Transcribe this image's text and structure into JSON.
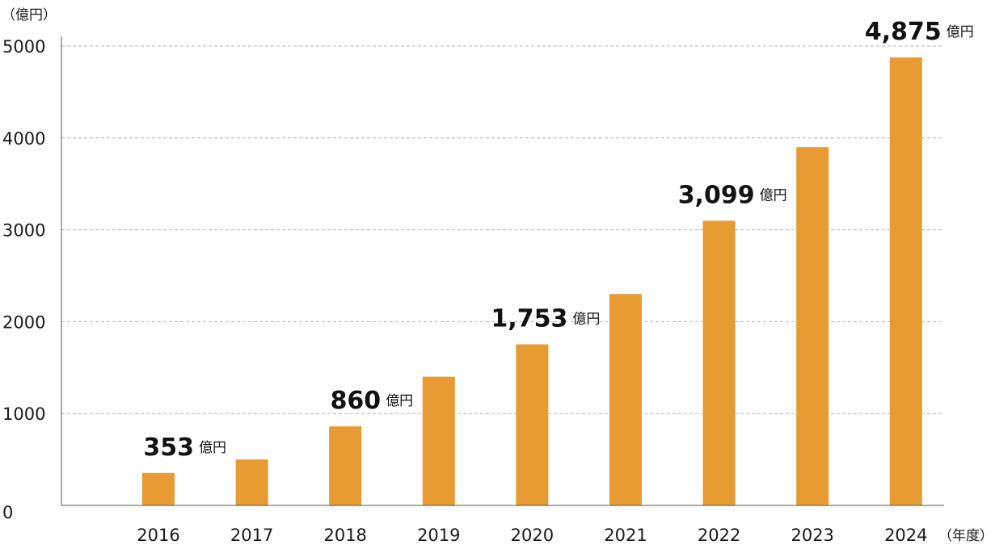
{
  "chart_data": {
    "type": "bar",
    "ylabel": "（億円）",
    "xlabel": "（年度）",
    "ylim": [
      0,
      5000
    ],
    "yticks": [
      "0",
      "1000",
      "2000",
      "3000",
      "4000",
      "5000"
    ],
    "grid": "horizontal dashed",
    "colors": {
      "bar": "#E89A33",
      "grid": "#b5b5b5",
      "axis": "#555555"
    },
    "categories": [
      "2016",
      "2017",
      "2018",
      "2019",
      "2020",
      "2021",
      "2022",
      "2023",
      "2024"
    ],
    "values": [
      353,
      500,
      860,
      1400,
      1753,
      2300,
      3099,
      3900,
      4875
    ],
    "data_labels": [
      {
        "index": 0,
        "value": "353",
        "unit": "億円"
      },
      {
        "index": 2,
        "value": "860",
        "unit": "億円"
      },
      {
        "index": 4,
        "value": "1,753",
        "unit": "億円"
      },
      {
        "index": 6,
        "value": "3,099",
        "unit": "億円"
      },
      {
        "index": 8,
        "value": "4,875",
        "unit": "億円"
      }
    ]
  }
}
